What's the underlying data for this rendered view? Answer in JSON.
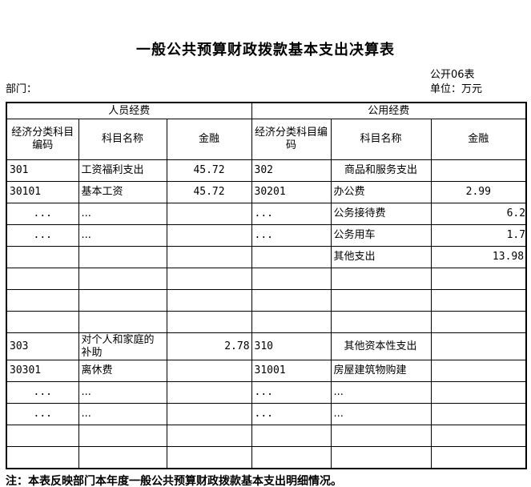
{
  "title": "一般公共预算财政拨款基本支出决算表",
  "meta": {
    "table_code": "公开06表",
    "unit_label": "单位：万元",
    "department_label": "部门："
  },
  "table": {
    "group_headers": [
      {
        "label": "人员经费"
      },
      {
        "label": "公用经费"
      }
    ],
    "column_headers": [
      "经济分类科目编码",
      "科目名称",
      "金融",
      "经济分类科目编码",
      "科目名称",
      "金融"
    ],
    "rows": [
      [
        {
          "t": "301",
          "a": "l"
        },
        {
          "t": "工资福利支出",
          "a": "l"
        },
        {
          "t": "45.72",
          "a": "c"
        },
        {
          "t": "302",
          "a": "l"
        },
        {
          "t": "商品和服务支出",
          "a": "c"
        },
        {
          "t": "",
          "a": "l"
        }
      ],
      [
        {
          "t": "30101",
          "a": "l"
        },
        {
          "t": "基本工资",
          "a": "l"
        },
        {
          "t": "45.72",
          "a": "c"
        },
        {
          "t": "30201",
          "a": "l"
        },
        {
          "t": "办公费",
          "a": "l"
        },
        {
          "t": "2.99",
          "a": "c"
        }
      ],
      [
        {
          "t": "...",
          "a": "c"
        },
        {
          "t": "...",
          "a": "l"
        },
        {
          "t": "",
          "a": "l"
        },
        {
          "t": "...",
          "a": "l"
        },
        {
          "t": "公务接待费",
          "a": "l"
        },
        {
          "t": "6.2",
          "a": "rf"
        }
      ],
      [
        {
          "t": "...",
          "a": "c"
        },
        {
          "t": "...",
          "a": "l"
        },
        {
          "t": "",
          "a": "l"
        },
        {
          "t": "...",
          "a": "l"
        },
        {
          "t": "公务用车",
          "a": "l"
        },
        {
          "t": "1.7",
          "a": "rf"
        }
      ],
      [
        {
          "t": "",
          "a": "l"
        },
        {
          "t": "",
          "a": "l"
        },
        {
          "t": "",
          "a": "l"
        },
        {
          "t": "",
          "a": "l"
        },
        {
          "t": "其他支出",
          "a": "l"
        },
        {
          "t": "13.98",
          "a": "r"
        }
      ],
      [
        {
          "t": "",
          "a": "l"
        },
        {
          "t": "",
          "a": "l"
        },
        {
          "t": "",
          "a": "l"
        },
        {
          "t": "",
          "a": "l"
        },
        {
          "t": "",
          "a": "l"
        },
        {
          "t": "",
          "a": "l"
        }
      ],
      [
        {
          "t": "",
          "a": "l"
        },
        {
          "t": "",
          "a": "l"
        },
        {
          "t": "",
          "a": "l"
        },
        {
          "t": "",
          "a": "l"
        },
        {
          "t": "",
          "a": "l"
        },
        {
          "t": "",
          "a": "l"
        }
      ],
      [
        {
          "t": "",
          "a": "l"
        },
        {
          "t": "",
          "a": "l"
        },
        {
          "t": "",
          "a": "l"
        },
        {
          "t": "",
          "a": "l"
        },
        {
          "t": "",
          "a": "l"
        },
        {
          "t": "",
          "a": "l"
        }
      ],
      [
        {
          "t": "303",
          "a": "l"
        },
        {
          "t": "对个人和家庭的补助",
          "a": "l"
        },
        {
          "t": "2.78",
          "a": "r"
        },
        {
          "t": "310",
          "a": "l"
        },
        {
          "t": "其他资本性支出",
          "a": "l",
          "i": true
        },
        {
          "t": "",
          "a": "l"
        }
      ],
      [
        {
          "t": "30301",
          "a": "l"
        },
        {
          "t": "离休费",
          "a": "l"
        },
        {
          "t": "",
          "a": "l"
        },
        {
          "t": "31001",
          "a": "l"
        },
        {
          "t": "房屋建筑物购建",
          "a": "l"
        },
        {
          "t": "",
          "a": "l"
        }
      ],
      [
        {
          "t": "...",
          "a": "c"
        },
        {
          "t": "...",
          "a": "l"
        },
        {
          "t": "",
          "a": "l"
        },
        {
          "t": "...",
          "a": "l"
        },
        {
          "t": "...",
          "a": "l"
        },
        {
          "t": "",
          "a": "l"
        }
      ],
      [
        {
          "t": "...",
          "a": "c"
        },
        {
          "t": "...",
          "a": "l"
        },
        {
          "t": "",
          "a": "l"
        },
        {
          "t": "...",
          "a": "l"
        },
        {
          "t": "...",
          "a": "l"
        },
        {
          "t": "",
          "a": "l"
        }
      ],
      [
        {
          "t": "",
          "a": "l"
        },
        {
          "t": "",
          "a": "l"
        },
        {
          "t": "",
          "a": "l"
        },
        {
          "t": "",
          "a": "l"
        },
        {
          "t": "",
          "a": "l"
        },
        {
          "t": "",
          "a": "l"
        }
      ],
      [
        {
          "t": "",
          "a": "l"
        },
        {
          "t": "",
          "a": "l"
        },
        {
          "t": "",
          "a": "l"
        },
        {
          "t": "",
          "a": "l"
        },
        {
          "t": "",
          "a": "l"
        },
        {
          "t": "",
          "a": "l"
        }
      ]
    ],
    "tall_row_index": 8,
    "numeric_columns": [
      0,
      2,
      3,
      5
    ]
  },
  "note": "注：本表反映部门本年度一般公共预算财政拨款基本支出明细情况。"
}
